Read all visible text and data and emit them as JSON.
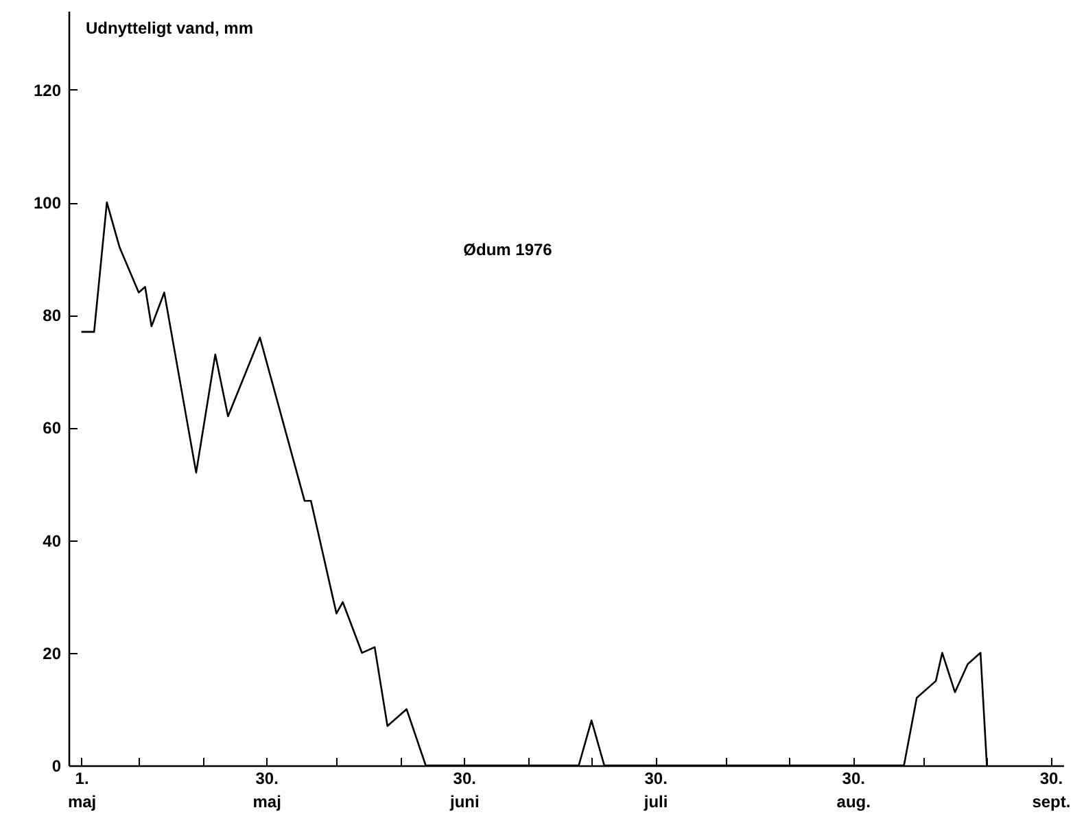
{
  "chart_data": {
    "type": "line",
    "ylabel": "Udnytteligt vand, mm",
    "annotations": [
      "Ødum 1976"
    ],
    "x": [
      "1976-05-01",
      "1976-05-03",
      "1976-05-05",
      "1976-05-07",
      "1976-05-10",
      "1976-05-11",
      "1976-05-12",
      "1976-05-14",
      "1976-05-19",
      "1976-05-22",
      "1976-05-24",
      "1976-05-29",
      "1976-06-05",
      "1976-06-06",
      "1976-06-10",
      "1976-06-11",
      "1976-06-14",
      "1976-06-16",
      "1976-06-18",
      "1976-06-21",
      "1976-06-24",
      "1976-07-18",
      "1976-07-20",
      "1976-07-22",
      "1976-09-07",
      "1976-09-09",
      "1976-09-12",
      "1976-09-13",
      "1976-09-15",
      "1976-09-17",
      "1976-09-19",
      "1976-09-20"
    ],
    "series": [
      {
        "color": "#000000",
        "values": [
          77,
          77,
          100,
          92,
          84,
          85,
          78,
          84,
          52,
          73,
          62,
          76,
          47,
          47,
          27,
          29,
          20,
          21,
          7,
          10,
          0,
          0,
          8,
          0,
          0,
          12,
          15,
          20,
          13,
          18,
          20,
          0
        ]
      }
    ],
    "xlim": [
      "1976-04-29",
      "1976-10-02"
    ],
    "xticks": [
      {
        "value": "1976-05-01",
        "label": "1.\nmaj"
      },
      {
        "value": "1976-05-10",
        "label": null
      },
      {
        "value": "1976-05-20",
        "label": null
      },
      {
        "value": "1976-05-30",
        "label": "30.\nmaj"
      },
      {
        "value": "1976-06-10",
        "label": null
      },
      {
        "value": "1976-06-20",
        "label": null
      },
      {
        "value": "1976-06-30",
        "label": "30.\njuni"
      },
      {
        "value": "1976-07-10",
        "label": null
      },
      {
        "value": "1976-07-20",
        "label": null
      },
      {
        "value": "1976-07-30",
        "label": "30.\njuli"
      },
      {
        "value": "1976-08-10",
        "label": null
      },
      {
        "value": "1976-08-20",
        "label": null
      },
      {
        "value": "1976-08-30",
        "label": "30.\naug."
      },
      {
        "value": "1976-09-10",
        "label": null
      },
      {
        "value": "1976-09-20",
        "label": null
      },
      {
        "value": "1976-09-30",
        "label": "30.\nsept."
      }
    ],
    "ylim": [
      0,
      134
    ],
    "yticks": [
      0,
      20,
      40,
      60,
      80,
      100,
      120
    ]
  }
}
